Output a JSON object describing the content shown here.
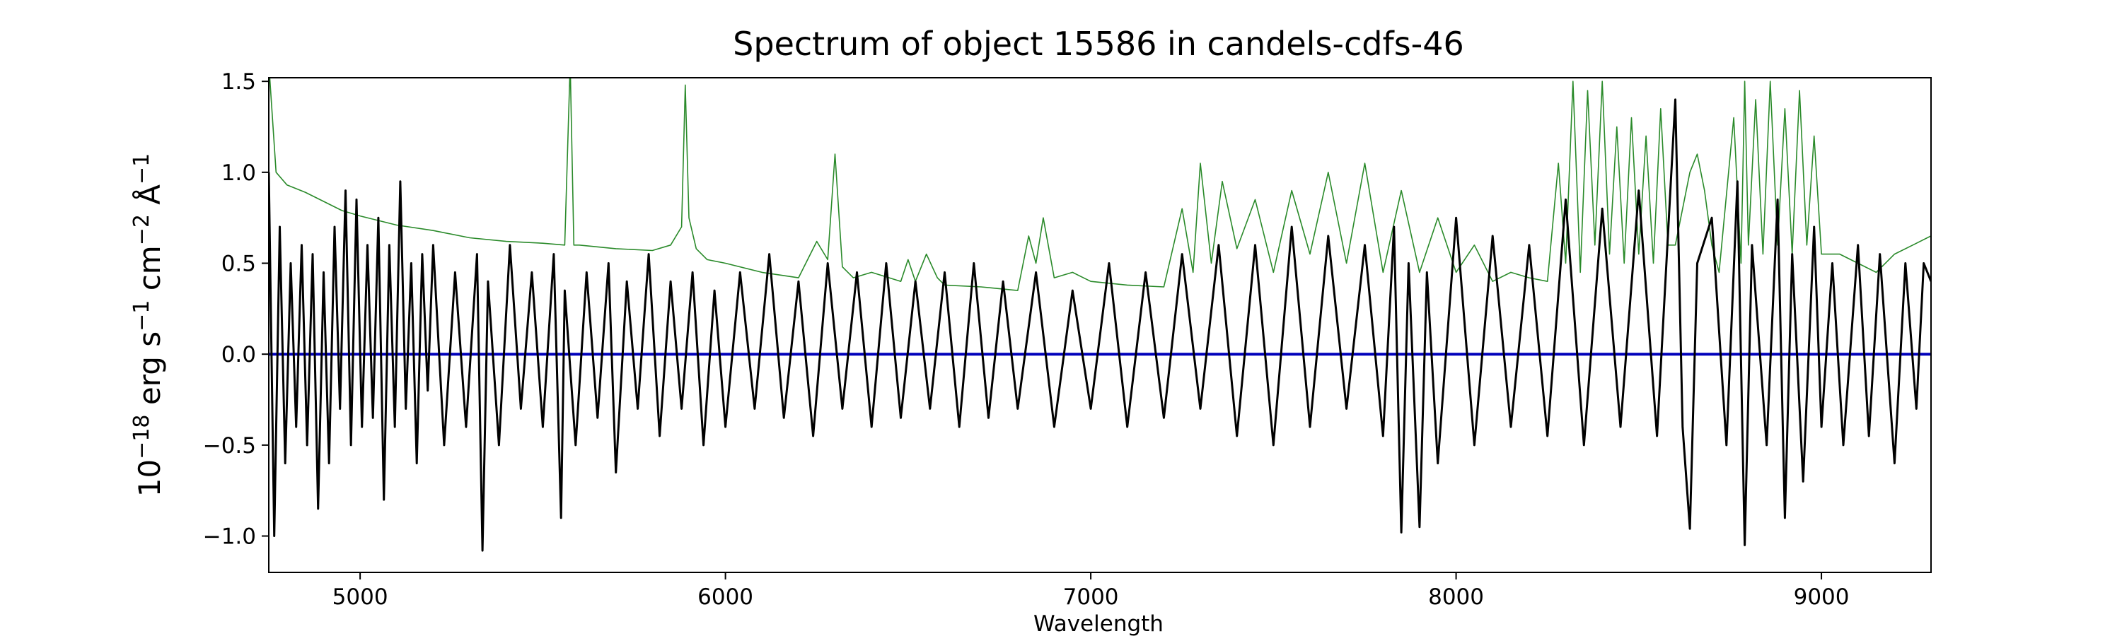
{
  "chart_data": {
    "type": "line",
    "title": "Spectrum of object 15586 in candels-cdfs-46",
    "xlabel": "Wavelength",
    "ylabel": {
      "base": "10",
      "exp1": "−18",
      "erg": " erg s",
      "exp2": "−1",
      "cm": " cm",
      "exp3": "−2",
      "ang": " Å",
      "exp4": "−1"
    },
    "xlim": [
      4750,
      9300
    ],
    "ylim": [
      -1.2,
      1.52
    ],
    "grid": false,
    "x_ticks": [
      5000,
      6000,
      7000,
      8000,
      9000
    ],
    "x_tick_labels": [
      "5000",
      "6000",
      "7000",
      "8000",
      "9000"
    ],
    "y_ticks": [
      -1.0,
      -0.5,
      0.0,
      0.5,
      1.0,
      1.5
    ],
    "y_tick_labels": [
      "−1.0",
      "−0.5",
      "0.0",
      "0.5",
      "1.0",
      "1.5"
    ],
    "series": [
      {
        "role": "error",
        "color": "#2a8a2a",
        "x": [
          4750,
          4770,
          4800,
          4850,
          4900,
          4950,
          5000,
          5100,
          5200,
          5300,
          5400,
          5500,
          5560,
          5575,
          5585,
          5600,
          5700,
          5800,
          5850,
          5880,
          5890,
          5900,
          5920,
          5950,
          6000,
          6100,
          6200,
          6250,
          6280,
          6300,
          6320,
          6350,
          6400,
          6480,
          6500,
          6520,
          6550,
          6580,
          6600,
          6700,
          6800,
          6830,
          6850,
          6870,
          6900,
          6950,
          7000,
          7100,
          7200,
          7250,
          7280,
          7300,
          7330,
          7360,
          7400,
          7450,
          7500,
          7550,
          7600,
          7650,
          7700,
          7750,
          7800,
          7850,
          7900,
          7950,
          8000,
          8050,
          8100,
          8150,
          8200,
          8250,
          8280,
          8300,
          8320,
          8340,
          8360,
          8380,
          8400,
          8420,
          8440,
          8460,
          8480,
          8500,
          8520,
          8540,
          8560,
          8580,
          8600,
          8640,
          8660,
          8680,
          8700,
          8720,
          8760,
          8780,
          8790,
          8800,
          8820,
          8840,
          8860,
          8880,
          8900,
          8920,
          8940,
          8960,
          8980,
          9000,
          9050,
          9100,
          9150,
          9200,
          9250,
          9300
        ],
        "y": [
          1.6,
          1.0,
          0.93,
          0.89,
          0.84,
          0.79,
          0.76,
          0.71,
          0.68,
          0.64,
          0.62,
          0.61,
          0.6,
          1.6,
          0.6,
          0.6,
          0.58,
          0.57,
          0.6,
          0.7,
          1.48,
          0.75,
          0.58,
          0.52,
          0.5,
          0.45,
          0.42,
          0.62,
          0.52,
          1.1,
          0.48,
          0.42,
          0.45,
          0.4,
          0.52,
          0.4,
          0.55,
          0.42,
          0.38,
          0.37,
          0.35,
          0.65,
          0.5,
          0.75,
          0.42,
          0.45,
          0.4,
          0.38,
          0.37,
          0.8,
          0.45,
          1.05,
          0.5,
          0.95,
          0.58,
          0.85,
          0.45,
          0.9,
          0.55,
          1.0,
          0.5,
          1.05,
          0.45,
          0.9,
          0.45,
          0.75,
          0.45,
          0.6,
          0.4,
          0.45,
          0.42,
          0.4,
          1.05,
          0.5,
          1.5,
          0.45,
          1.45,
          0.6,
          1.5,
          0.55,
          1.25,
          0.5,
          1.3,
          0.55,
          1.2,
          0.5,
          1.35,
          0.6,
          0.6,
          1.0,
          1.1,
          0.9,
          0.6,
          0.45,
          1.3,
          0.5,
          1.5,
          0.6,
          1.4,
          0.55,
          1.5,
          0.6,
          1.35,
          0.55,
          1.45,
          0.6,
          1.2,
          0.55,
          0.55,
          0.5,
          0.45,
          0.55,
          0.6,
          0.65
        ]
      },
      {
        "role": "model",
        "color": "#0000bb",
        "x": [
          4750,
          9300
        ],
        "y": [
          0.0,
          0.0
        ]
      },
      {
        "role": "flux",
        "color": "#000000",
        "x": [
          4750,
          4765,
          4780,
          4795,
          4810,
          4825,
          4840,
          4855,
          4870,
          4885,
          4900,
          4915,
          4930,
          4945,
          4960,
          4975,
          4990,
          5005,
          5020,
          5035,
          5050,
          5065,
          5080,
          5095,
          5110,
          5125,
          5140,
          5155,
          5170,
          5185,
          5200,
          5230,
          5260,
          5290,
          5320,
          5335,
          5350,
          5380,
          5410,
          5440,
          5470,
          5500,
          5530,
          5550,
          5560,
          5590,
          5620,
          5650,
          5680,
          5700,
          5730,
          5760,
          5790,
          5820,
          5850,
          5880,
          5910,
          5940,
          5970,
          6000,
          6040,
          6080,
          6120,
          6160,
          6200,
          6240,
          6280,
          6320,
          6360,
          6400,
          6440,
          6480,
          6520,
          6560,
          6600,
          6640,
          6680,
          6720,
          6760,
          6800,
          6850,
          6900,
          6950,
          7000,
          7050,
          7100,
          7150,
          7200,
          7250,
          7300,
          7350,
          7400,
          7450,
          7500,
          7550,
          7600,
          7650,
          7700,
          7750,
          7800,
          7830,
          7850,
          7870,
          7900,
          7920,
          7950,
          8000,
          8050,
          8100,
          8150,
          8200,
          8250,
          8300,
          8350,
          8400,
          8450,
          8500,
          8550,
          8600,
          8620,
          8640,
          8660,
          8700,
          8740,
          8770,
          8790,
          8810,
          8850,
          8880,
          8900,
          8920,
          8950,
          8980,
          9000,
          9030,
          9060,
          9100,
          9130,
          9160,
          9200,
          9230,
          9260,
          9280,
          9300
        ],
        "y": [
          1.0,
          -1.0,
          0.7,
          -0.6,
          0.5,
          -0.4,
          0.6,
          -0.5,
          0.55,
          -0.85,
          0.45,
          -0.6,
          0.7,
          -0.3,
          0.9,
          -0.5,
          0.85,
          -0.4,
          0.6,
          -0.35,
          0.75,
          -0.8,
          0.6,
          -0.4,
          0.95,
          -0.3,
          0.5,
          -0.6,
          0.55,
          -0.2,
          0.6,
          -0.5,
          0.45,
          -0.4,
          0.55,
          -1.08,
          0.4,
          -0.5,
          0.6,
          -0.3,
          0.45,
          -0.4,
          0.55,
          -0.9,
          0.35,
          -0.5,
          0.45,
          -0.35,
          0.5,
          -0.65,
          0.4,
          -0.3,
          0.55,
          -0.45,
          0.4,
          -0.3,
          0.45,
          -0.5,
          0.35,
          -0.4,
          0.45,
          -0.3,
          0.55,
          -0.35,
          0.4,
          -0.45,
          0.5,
          -0.3,
          0.45,
          -0.4,
          0.5,
          -0.35,
          0.4,
          -0.3,
          0.45,
          -0.4,
          0.5,
          -0.35,
          0.4,
          -0.3,
          0.45,
          -0.4,
          0.35,
          -0.3,
          0.5,
          -0.4,
          0.45,
          -0.35,
          0.55,
          -0.3,
          0.6,
          -0.45,
          0.6,
          -0.5,
          0.7,
          -0.4,
          0.65,
          -0.3,
          0.6,
          -0.45,
          0.7,
          -0.98,
          0.5,
          -0.95,
          0.45,
          -0.6,
          0.75,
          -0.5,
          0.65,
          -0.4,
          0.6,
          -0.45,
          0.85,
          -0.5,
          0.8,
          -0.4,
          0.9,
          -0.45,
          1.4,
          -0.4,
          -0.96,
          0.5,
          0.75,
          -0.5,
          0.95,
          -1.05,
          0.6,
          -0.5,
          0.85,
          -0.9,
          0.55,
          -0.7,
          0.7,
          -0.4,
          0.5,
          -0.5,
          0.6,
          -0.45,
          0.55,
          -0.6,
          0.5,
          -0.3,
          0.5,
          0.4
        ]
      }
    ]
  }
}
